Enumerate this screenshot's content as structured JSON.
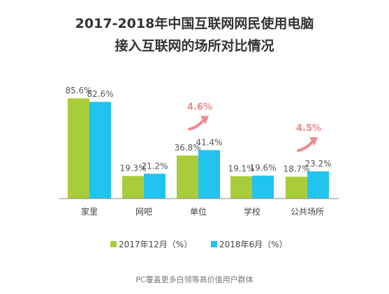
{
  "title_line1": "2017-2018年中国互联网网民使用电脑",
  "title_line2": "接入互联网的场所对比情况",
  "source_note": "PC覆盖更多白领等高价值用户群体",
  "chart_data": {
    "type": "bar",
    "categories": [
      "家里",
      "网吧",
      "单位",
      "学校",
      "公共场所"
    ],
    "series": [
      {
        "name": "2017年12月（%）",
        "values": [
          85.6,
          19.3,
          36.8,
          19.1,
          18.7
        ],
        "labels": [
          "85.6%",
          "19.3%",
          "36.8%",
          "19.1%",
          "18.7%"
        ],
        "color": "#A9CD3A"
      },
      {
        "name": "2018年6月（%）",
        "values": [
          82.6,
          21.2,
          41.4,
          19.6,
          23.2
        ],
        "labels": [
          "82.6%",
          "21.2%",
          "41.4%",
          "19.6%",
          "23.2%"
        ],
        "color": "#20C4EE"
      }
    ],
    "annotations": [
      {
        "category": "单位",
        "text": "4.6%"
      },
      {
        "category": "公共场所",
        "text": "4.5%"
      }
    ],
    "annotation_color": "#EF8A8A",
    "legend_position": "bottom",
    "ylim": [
      0,
      100
    ],
    "grid": false
  }
}
